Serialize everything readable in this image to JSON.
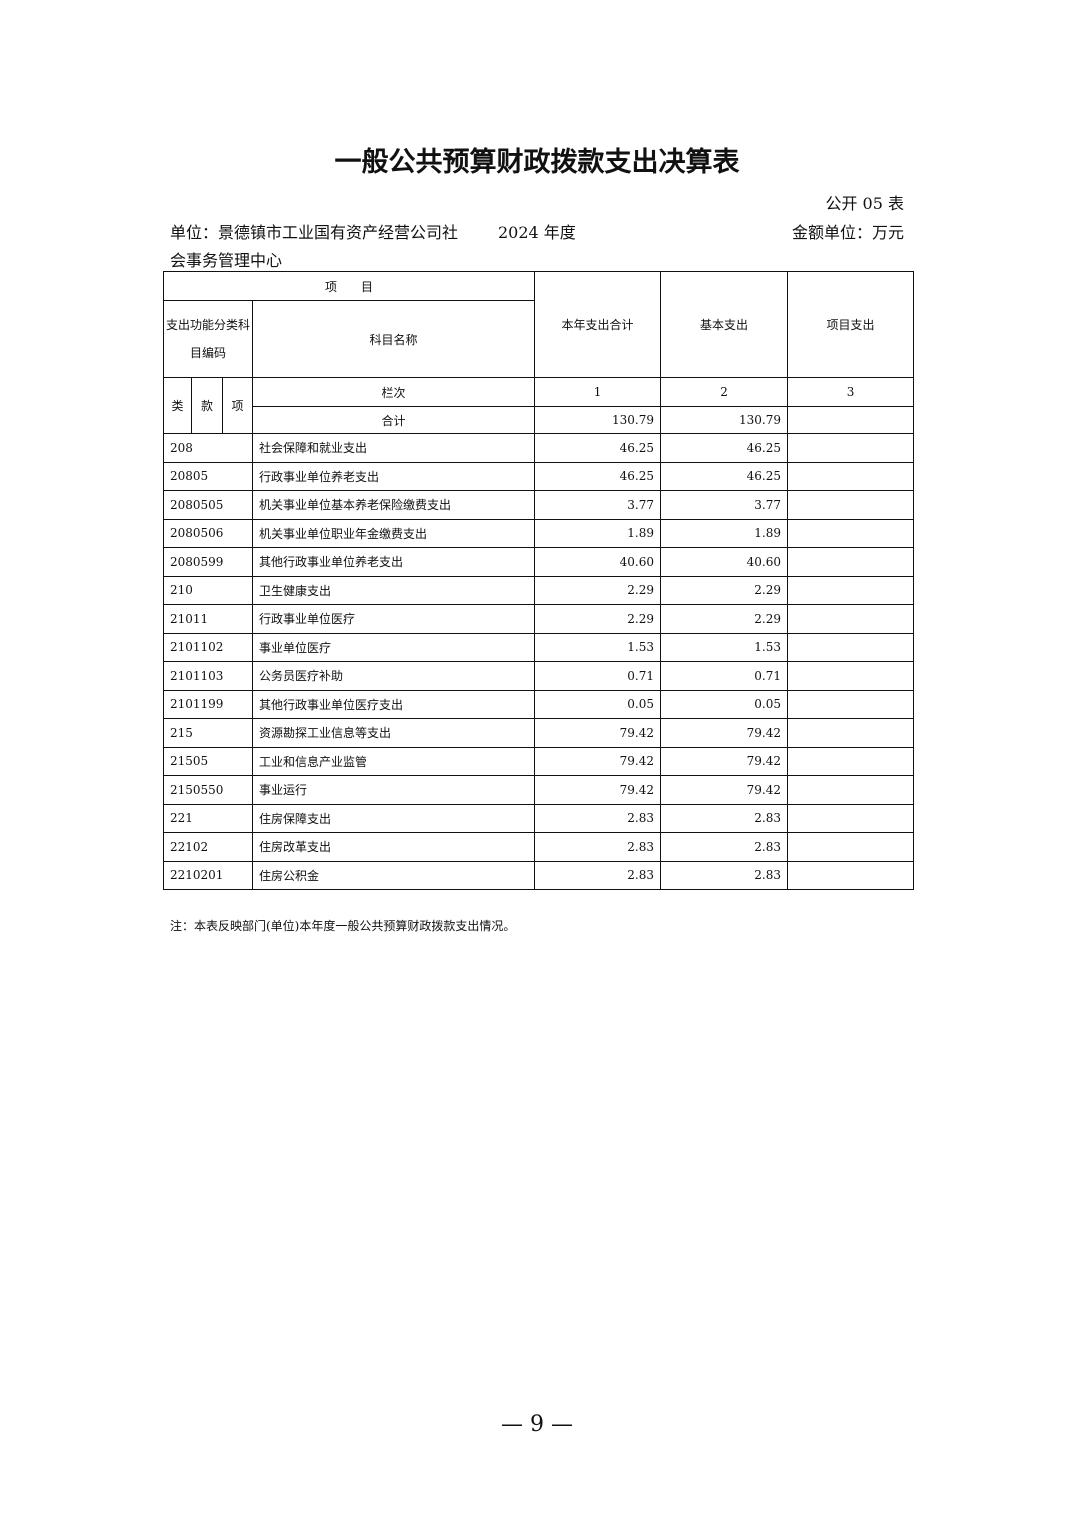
{
  "title": "一般公共预算财政拨款支出决算表",
  "form_no": "公开 05 表",
  "unit_label": "单位：景德镇市工业国有资产经营公司社会事务管理中心",
  "year": "2024 年度",
  "money_unit": "金额单位：万元",
  "table": {
    "header_item": "项　　目",
    "header_code": "支出功能分类科目编码",
    "header_name": "科目名称",
    "col_total": "本年支出合计",
    "col_basic": "基本支出",
    "col_project": "项目支出",
    "lei": "类",
    "kuan": "款",
    "xiang": "项",
    "lanci": "栏次",
    "lanci_1": "1",
    "lanci_2": "2",
    "lanci_3": "3",
    "sum_label": "合计",
    "sum_total": "130.79",
    "sum_basic": "130.79",
    "sum_project": "",
    "rows": [
      {
        "code": "208",
        "name": "社会保障和就业支出",
        "total": "46.25",
        "basic": "46.25",
        "project": ""
      },
      {
        "code": "20805",
        "name": "行政事业单位养老支出",
        "total": "46.25",
        "basic": "46.25",
        "project": ""
      },
      {
        "code": "2080505",
        "name": "机关事业单位基本养老保险缴费支出",
        "total": "3.77",
        "basic": "3.77",
        "project": ""
      },
      {
        "code": "2080506",
        "name": "机关事业单位职业年金缴费支出",
        "total": "1.89",
        "basic": "1.89",
        "project": ""
      },
      {
        "code": "2080599",
        "name": "其他行政事业单位养老支出",
        "total": "40.60",
        "basic": "40.60",
        "project": ""
      },
      {
        "code": "210",
        "name": "卫生健康支出",
        "total": "2.29",
        "basic": "2.29",
        "project": ""
      },
      {
        "code": "21011",
        "name": "行政事业单位医疗",
        "total": "2.29",
        "basic": "2.29",
        "project": ""
      },
      {
        "code": "2101102",
        "name": "事业单位医疗",
        "total": "1.53",
        "basic": "1.53",
        "project": ""
      },
      {
        "code": "2101103",
        "name": "公务员医疗补助",
        "total": "0.71",
        "basic": "0.71",
        "project": ""
      },
      {
        "code": "2101199",
        "name": "其他行政事业单位医疗支出",
        "total": "0.05",
        "basic": "0.05",
        "project": ""
      },
      {
        "code": "215",
        "name": "资源勘探工业信息等支出",
        "total": "79.42",
        "basic": "79.42",
        "project": ""
      },
      {
        "code": "21505",
        "name": "工业和信息产业监管",
        "total": "79.42",
        "basic": "79.42",
        "project": ""
      },
      {
        "code": "2150550",
        "name": "事业运行",
        "total": "79.42",
        "basic": "79.42",
        "project": ""
      },
      {
        "code": "221",
        "name": "住房保障支出",
        "total": "2.83",
        "basic": "2.83",
        "project": ""
      },
      {
        "code": "22102",
        "name": "住房改革支出",
        "total": "2.83",
        "basic": "2.83",
        "project": ""
      },
      {
        "code": "2210201",
        "name": "住房公积金",
        "total": "2.83",
        "basic": "2.83",
        "project": ""
      }
    ]
  },
  "note": "注：本表反映部门(单位)本年度一般公共预算财政拨款支出情况。",
  "page_number": "— 9 —"
}
